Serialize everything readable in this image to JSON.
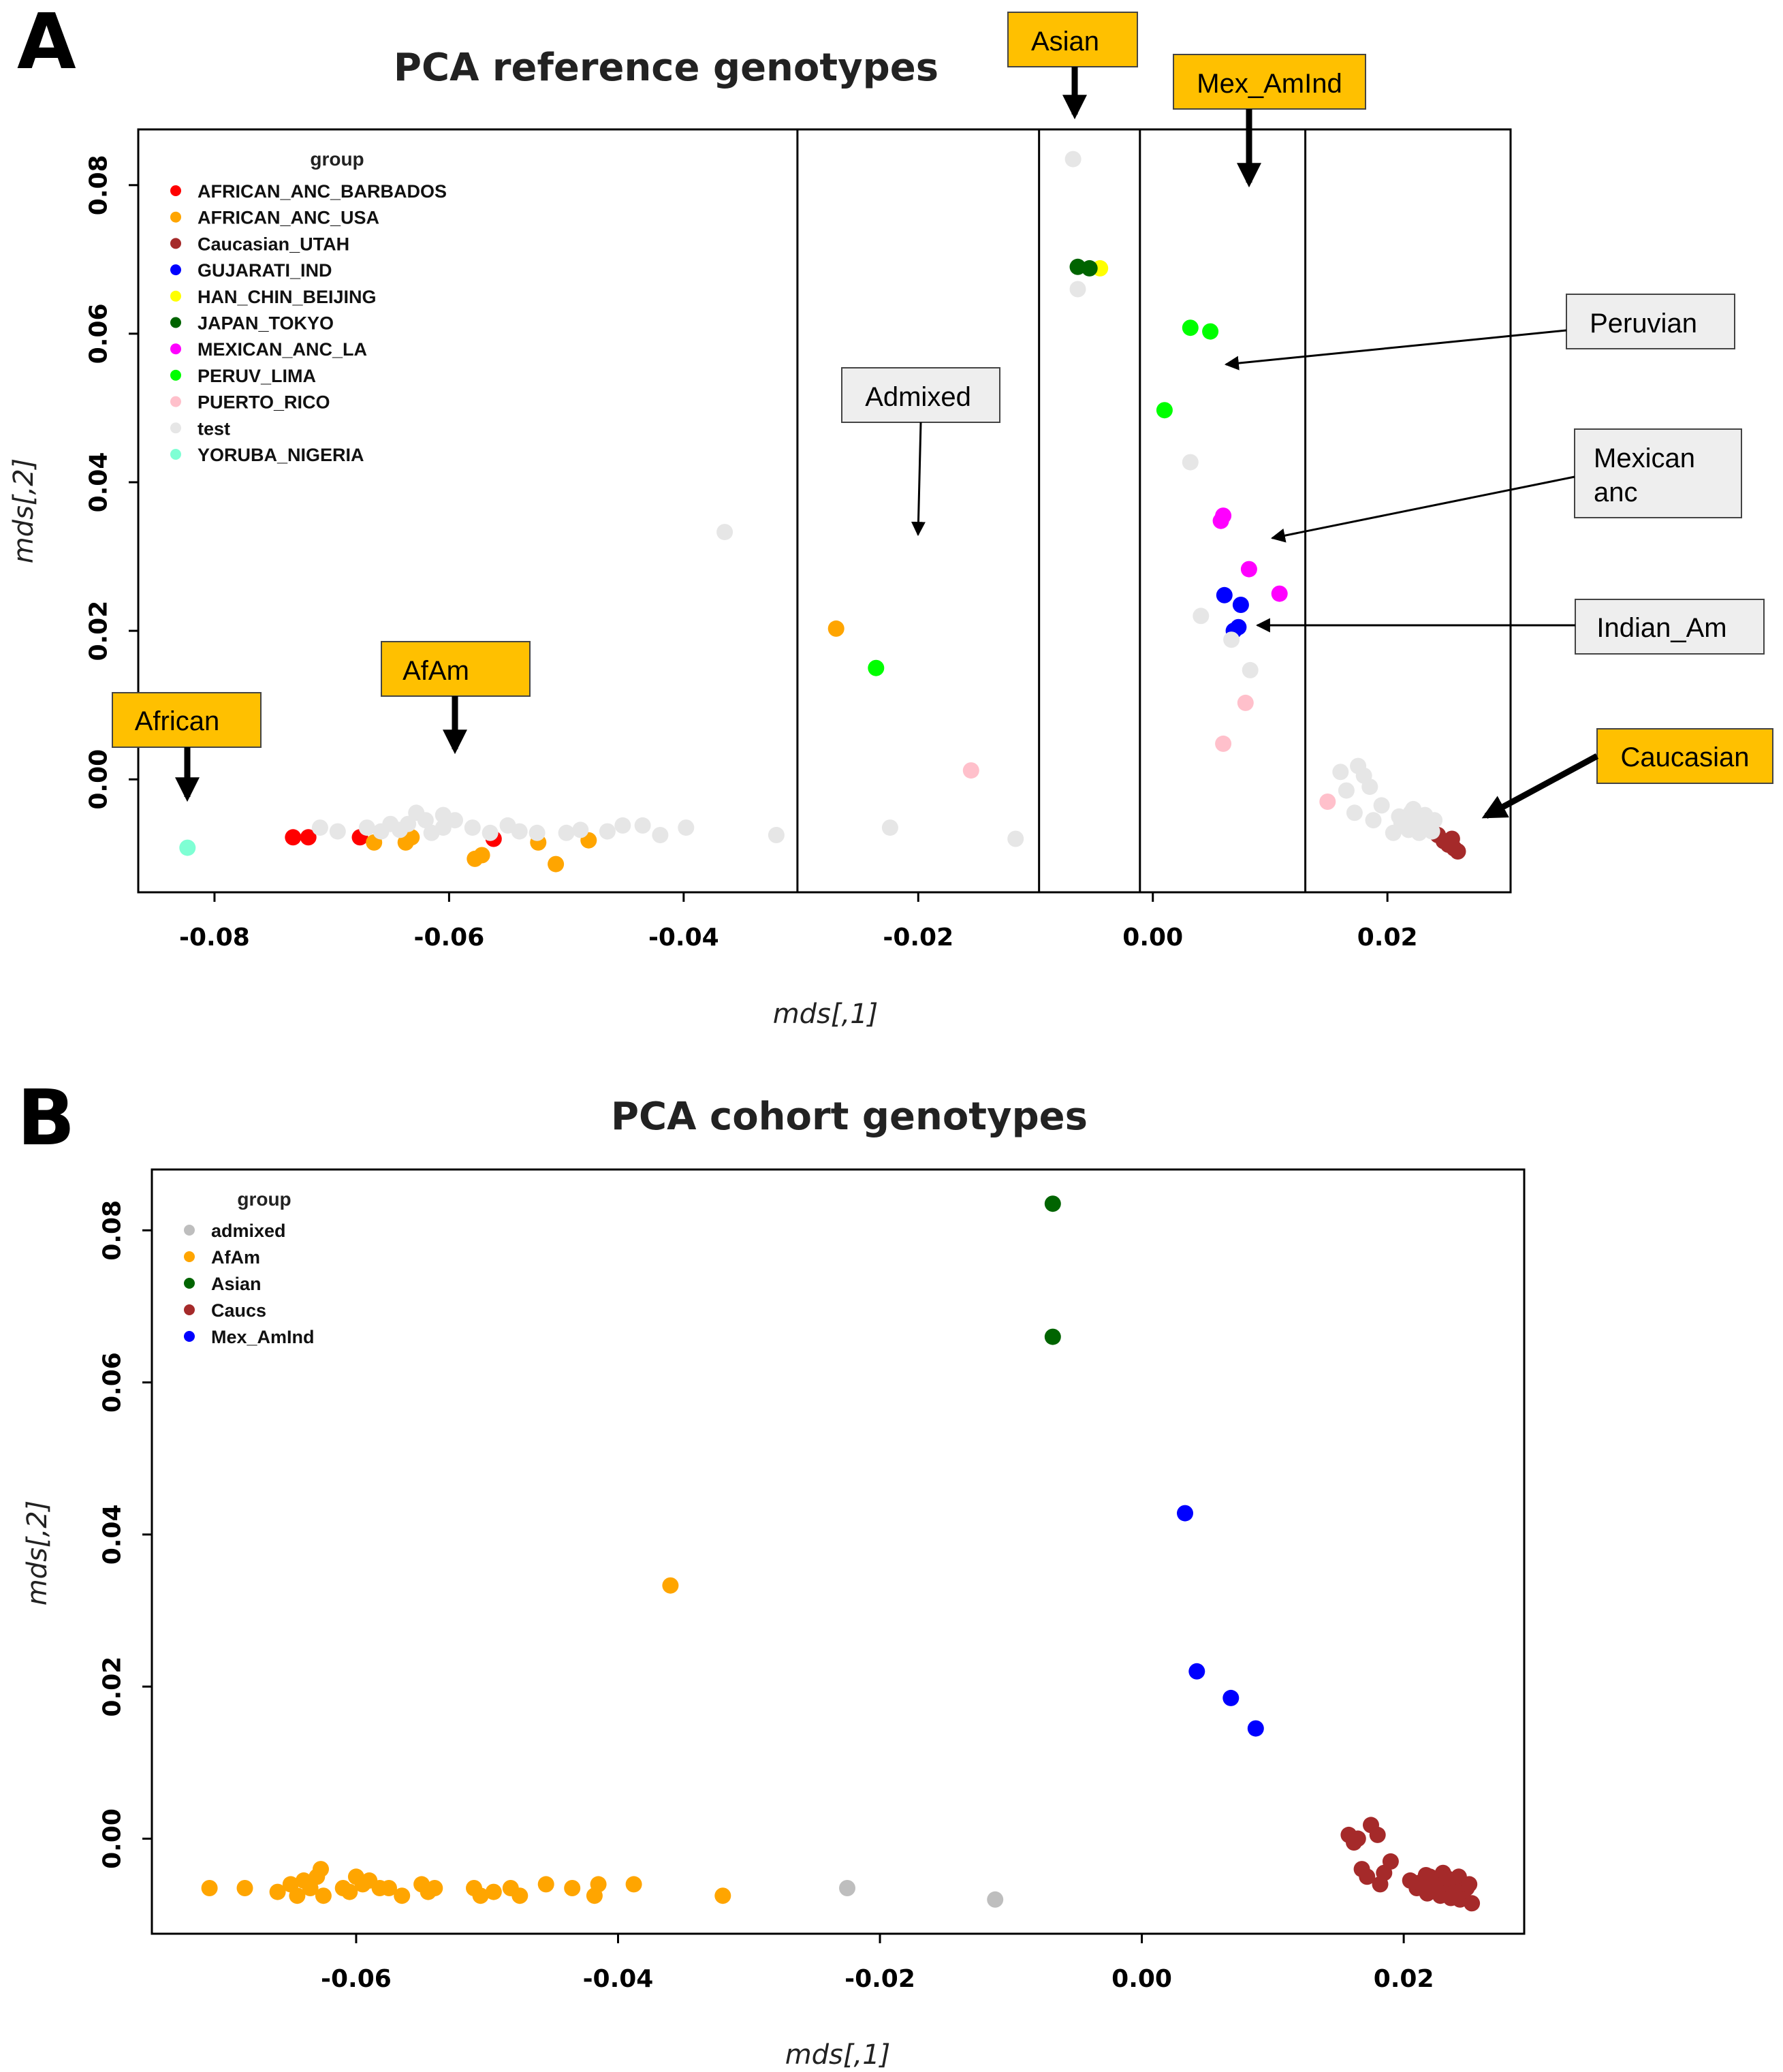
{
  "panel_a_letter": "A",
  "panel_b_letter": "B",
  "chart_data": [
    {
      "type": "scatter",
      "title": "PCA reference genotypes",
      "xlabel": "mds[,1]",
      "ylabel": "mds[,2]",
      "xlim": [
        -0.0865,
        0.0305
      ],
      "ylim": [
        -0.0152,
        0.0875
      ],
      "x_ticks": [
        -0.08,
        -0.06,
        -0.04,
        -0.02,
        0.0,
        0.02
      ],
      "x_tick_labels": [
        "-0.08",
        "-0.06",
        "-0.04",
        "-0.02",
        "0.00",
        "0.02"
      ],
      "y_ticks": [
        0.0,
        0.02,
        0.04,
        0.06,
        0.08
      ],
      "y_tick_labels": [
        "0.00",
        "0.02",
        "0.04",
        "0.06",
        "0.08"
      ],
      "vlines": [
        -0.0303,
        -0.0097,
        -0.0011,
        0.013
      ],
      "legend_title": "group",
      "legend_position": "top-left",
      "series": [
        {
          "name": "AFRICAN_ANC_BARBADOS",
          "color": "#ff0000",
          "points": [
            [
              -0.0733,
              -0.0078
            ],
            [
              -0.072,
              -0.0078
            ],
            [
              -0.0676,
              -0.0078
            ],
            [
              -0.0562,
              -0.008
            ]
          ]
        },
        {
          "name": "AFRICAN_ANC_USA",
          "color": "#ffa500",
          "points": [
            [
              -0.0664,
              -0.0085
            ],
            [
              -0.0637,
              -0.0085
            ],
            [
              -0.0632,
              -0.0078
            ],
            [
              -0.0578,
              -0.0107
            ],
            [
              -0.0572,
              -0.0102
            ],
            [
              -0.0524,
              -0.0085
            ],
            [
              -0.0509,
              -0.0114
            ],
            [
              -0.0481,
              -0.0082
            ],
            [
              -0.027,
              0.0203
            ]
          ]
        },
        {
          "name": "Caucasian_UTAH",
          "color": "#a52a2a",
          "points": [
            [
              0.0243,
              -0.0075
            ],
            [
              0.0248,
              -0.0083
            ],
            [
              0.0252,
              -0.0088
            ],
            [
              0.0257,
              -0.0093
            ],
            [
              0.026,
              -0.0097
            ],
            [
              0.0255,
              -0.008
            ]
          ]
        },
        {
          "name": "GUJARATI_IND",
          "color": "#0000ff",
          "points": [
            [
              0.0061,
              0.0248
            ],
            [
              0.0075,
              0.0235
            ],
            [
              0.0069,
              0.02
            ],
            [
              0.0073,
              0.0205
            ]
          ]
        },
        {
          "name": "HAN_CHIN_BEIJING",
          "color": "#ffff00",
          "points": [
            [
              -0.0045,
              0.0688
            ]
          ]
        },
        {
          "name": "JAPAN_TOKYO",
          "color": "#006400",
          "points": [
            [
              -0.0064,
              0.069
            ],
            [
              -0.0054,
              0.0688
            ]
          ]
        },
        {
          "name": "MEXICAN_ANC_LA",
          "color": "#ff00ff",
          "points": [
            [
              0.006,
              0.0355
            ],
            [
              0.0058,
              0.0348
            ],
            [
              0.0082,
              0.0283
            ],
            [
              0.0108,
              0.025
            ]
          ]
        },
        {
          "name": "PERUV_LIMA",
          "color": "#00ff00",
          "points": [
            [
              0.0032,
              0.0608
            ],
            [
              0.0049,
              0.0603
            ],
            [
              0.001,
              0.0497
            ],
            [
              -0.0236,
              0.015
            ]
          ]
        },
        {
          "name": "PUERTO_RICO",
          "color": "#ffc0cb",
          "points": [
            [
              -0.0155,
              0.0012
            ],
            [
              0.006,
              0.0048
            ],
            [
              0.0079,
              0.0103
            ],
            [
              0.0149,
              -0.003
            ]
          ]
        },
        {
          "name": "test",
          "color": "#e6e6e6",
          "points": [
            [
              -0.0068,
              0.0835
            ],
            [
              -0.0064,
              0.066
            ],
            [
              0.0032,
              0.0427
            ],
            [
              0.0041,
              0.022
            ],
            [
              0.0067,
              0.0188
            ],
            [
              0.0083,
              0.0147
            ],
            [
              -0.0365,
              0.0333
            ],
            [
              -0.0117,
              -0.008
            ],
            [
              -0.0224,
              -0.0065
            ],
            [
              -0.0321,
              -0.0075
            ],
            [
              -0.0398,
              -0.0065
            ],
            [
              -0.042,
              -0.0075
            ],
            [
              -0.0435,
              -0.0062
            ],
            [
              -0.0452,
              -0.0062
            ],
            [
              -0.0465,
              -0.007
            ],
            [
              -0.0488,
              -0.0068
            ],
            [
              -0.05,
              -0.0072
            ],
            [
              -0.0525,
              -0.0072
            ],
            [
              -0.054,
              -0.007
            ],
            [
              -0.055,
              -0.0062
            ],
            [
              -0.0565,
              -0.0072
            ],
            [
              -0.058,
              -0.0065
            ],
            [
              -0.0595,
              -0.0055
            ],
            [
              -0.0605,
              -0.0065
            ],
            [
              -0.0615,
              -0.0072
            ],
            [
              -0.062,
              -0.0055
            ],
            [
              -0.0628,
              -0.0045
            ],
            [
              -0.0635,
              -0.006
            ],
            [
              -0.0642,
              -0.0068
            ],
            [
              -0.065,
              -0.006
            ],
            [
              -0.0658,
              -0.007
            ],
            [
              -0.067,
              -0.0065
            ],
            [
              -0.0695,
              -0.007
            ],
            [
              -0.071,
              -0.0065
            ],
            [
              -0.0605,
              -0.0048
            ],
            [
              0.016,
              0.001
            ],
            [
              0.0175,
              0.0018
            ],
            [
              0.018,
              0.0005
            ],
            [
              0.0165,
              -0.0015
            ],
            [
              0.0185,
              -0.001
            ],
            [
              0.0195,
              -0.0035
            ],
            [
              0.0172,
              -0.0045
            ],
            [
              0.0188,
              -0.0055
            ],
            [
              0.0205,
              -0.0072
            ],
            [
              0.021,
              -0.005
            ],
            [
              0.0215,
              -0.006
            ],
            [
              0.022,
              -0.0045
            ],
            [
              0.0225,
              -0.0055
            ],
            [
              0.023,
              -0.0065
            ],
            [
              0.0218,
              -0.0068
            ],
            [
              0.0232,
              -0.0048
            ],
            [
              0.0236,
              -0.006
            ],
            [
              0.0212,
              -0.0058
            ],
            [
              0.0227,
              -0.0072
            ],
            [
              0.024,
              -0.0055
            ],
            [
              0.0238,
              -0.007
            ],
            [
              0.0222,
              -0.004
            ],
            [
              0.0228,
              -0.0052
            ],
            [
              0.0234,
              -0.0062
            ]
          ]
        },
        {
          "name": "YORUBA_NIGERIA",
          "color": "#7fffd4",
          "points": [
            [
              -0.0823,
              -0.0092
            ]
          ]
        }
      ],
      "annotations": [
        {
          "label": "Asian",
          "style": "gold-box"
        },
        {
          "label": "Mex_AmInd",
          "style": "gold-box"
        },
        {
          "label": "Peruvian",
          "style": "grey-box"
        },
        {
          "label": "Admixed",
          "style": "grey-box"
        },
        {
          "label": "Mexican\nanc",
          "style": "grey-box"
        },
        {
          "label": "Indian_Am",
          "style": "grey-box"
        },
        {
          "label": "AfAm",
          "style": "gold-box"
        },
        {
          "label": "African",
          "style": "gold-box"
        },
        {
          "label": "Caucasian",
          "style": "gold-box"
        }
      ]
    },
    {
      "type": "scatter",
      "title": "PCA cohort genotypes",
      "xlabel": "mds[,1]",
      "ylabel": "mds[,2]",
      "xlim": [
        -0.0756,
        0.0292
      ],
      "ylim": [
        -0.0125,
        0.088
      ],
      "x_ticks": [
        -0.06,
        -0.04,
        -0.02,
        0.0,
        0.02
      ],
      "x_tick_labels": [
        "-0.06",
        "-0.04",
        "-0.02",
        "0.00",
        "0.02"
      ],
      "y_ticks": [
        0.0,
        0.02,
        0.04,
        0.06,
        0.08
      ],
      "y_tick_labels": [
        "0.00",
        "0.02",
        "0.04",
        "0.06",
        "0.08"
      ],
      "legend_title": "group",
      "legend_position": "top-left",
      "series": [
        {
          "name": "admixed",
          "color": "#bebebe",
          "points": [
            [
              -0.0225,
              -0.0065
            ],
            [
              -0.0112,
              -0.008
            ]
          ]
        },
        {
          "name": "AfAm",
          "color": "#ffa500",
          "points": [
            [
              -0.0712,
              -0.0065
            ],
            [
              -0.0685,
              -0.0065
            ],
            [
              -0.066,
              -0.007
            ],
            [
              -0.065,
              -0.006
            ],
            [
              -0.0645,
              -0.0075
            ],
            [
              -0.064,
              -0.0055
            ],
            [
              -0.0635,
              -0.0065
            ],
            [
              -0.063,
              -0.005
            ],
            [
              -0.0627,
              -0.004
            ],
            [
              -0.0625,
              -0.0075
            ],
            [
              -0.061,
              -0.0065
            ],
            [
              -0.0605,
              -0.007
            ],
            [
              -0.06,
              -0.005
            ],
            [
              -0.0595,
              -0.006
            ],
            [
              -0.059,
              -0.0055
            ],
            [
              -0.0582,
              -0.0065
            ],
            [
              -0.0575,
              -0.0065
            ],
            [
              -0.0565,
              -0.0075
            ],
            [
              -0.055,
              -0.006
            ],
            [
              -0.0545,
              -0.007
            ],
            [
              -0.054,
              -0.0065
            ],
            [
              -0.051,
              -0.0065
            ],
            [
              -0.0505,
              -0.0075
            ],
            [
              -0.0495,
              -0.007
            ],
            [
              -0.0482,
              -0.0065
            ],
            [
              -0.0475,
              -0.0075
            ],
            [
              -0.0455,
              -0.006
            ],
            [
              -0.0435,
              -0.0065
            ],
            [
              -0.0418,
              -0.0075
            ],
            [
              -0.0415,
              -0.006
            ],
            [
              -0.0388,
              -0.006
            ],
            [
              -0.036,
              0.0333
            ],
            [
              -0.032,
              -0.0075
            ]
          ]
        },
        {
          "name": "Asian",
          "color": "#006400",
          "points": [
            [
              -0.0068,
              0.0835
            ],
            [
              -0.0068,
              0.066
            ]
          ]
        },
        {
          "name": "Caucs",
          "color": "#a52a2a",
          "points": [
            [
              0.0158,
              0.0005
            ],
            [
              0.0162,
              -0.0005
            ],
            [
              0.0165,
              0.0
            ],
            [
              0.0175,
              0.0018
            ],
            [
              0.018,
              0.0005
            ],
            [
              0.0168,
              -0.004
            ],
            [
              0.0172,
              -0.005
            ],
            [
              0.0185,
              -0.0045
            ],
            [
              0.019,
              -0.003
            ],
            [
              0.0182,
              -0.006
            ],
            [
              0.0205,
              -0.0055
            ],
            [
              0.021,
              -0.0065
            ],
            [
              0.0215,
              -0.006
            ],
            [
              0.0218,
              -0.0072
            ],
            [
              0.022,
              -0.005
            ],
            [
              0.0225,
              -0.0055
            ],
            [
              0.0228,
              -0.0075
            ],
            [
              0.023,
              -0.0045
            ],
            [
              0.0232,
              -0.0065
            ],
            [
              0.0235,
              -0.0055
            ],
            [
              0.0238,
              -0.007
            ],
            [
              0.024,
              -0.006
            ],
            [
              0.0242,
              -0.005
            ],
            [
              0.0245,
              -0.0075
            ],
            [
              0.0248,
              -0.0065
            ],
            [
              0.025,
              -0.006
            ],
            [
              0.0212,
              -0.0058
            ],
            [
              0.0222,
              -0.0068
            ],
            [
              0.0227,
              -0.0062
            ],
            [
              0.0236,
              -0.0078
            ],
            [
              0.0243,
              -0.008
            ],
            [
              0.0252,
              -0.0085
            ],
            [
              0.0217,
              -0.0048
            ],
            [
              0.0233,
              -0.0052
            ]
          ]
        },
        {
          "name": "Mex_AmInd",
          "color": "#0000ff",
          "points": [
            [
              0.0033,
              0.0428
            ],
            [
              0.0042,
              0.022
            ],
            [
              0.0068,
              0.0185
            ],
            [
              0.0087,
              0.0145
            ]
          ]
        }
      ]
    }
  ]
}
